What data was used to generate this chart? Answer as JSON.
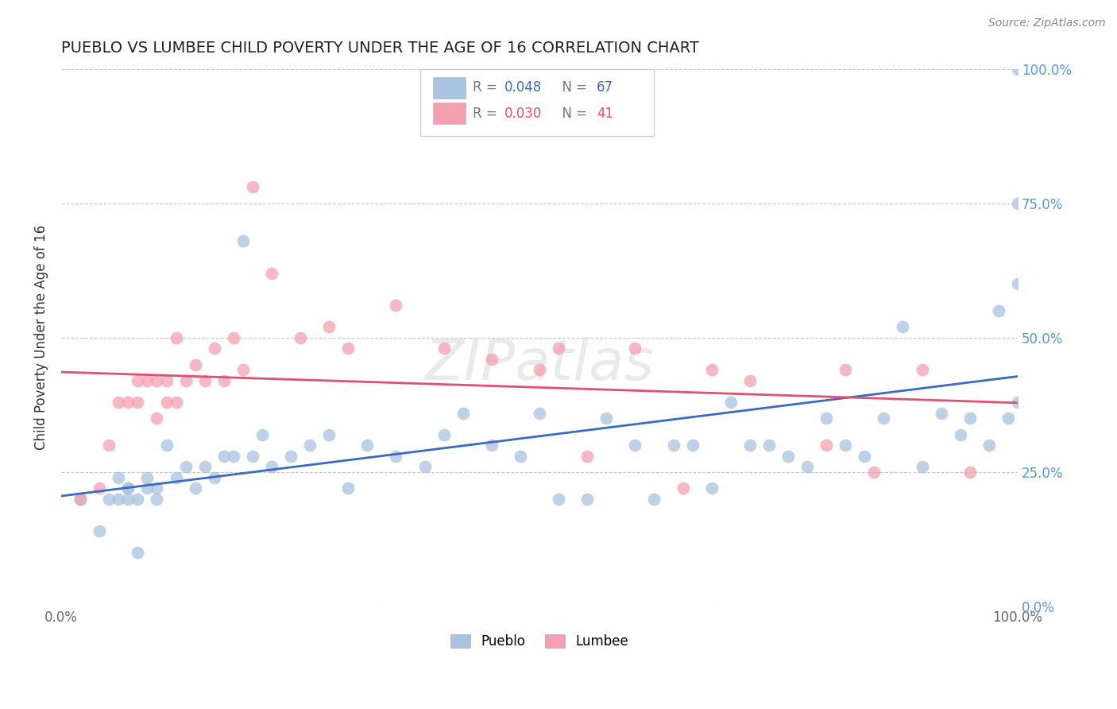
{
  "title": "PUEBLO VS LUMBEE CHILD POVERTY UNDER THE AGE OF 16 CORRELATION CHART",
  "source": "Source: ZipAtlas.com",
  "ylabel": "Child Poverty Under the Age of 16",
  "xlim": [
    0,
    1
  ],
  "ylim": [
    0,
    1
  ],
  "pueblo_color": "#a8c4e0",
  "lumbee_color": "#f4a0b0",
  "pueblo_line_color": "#3a6bbf",
  "lumbee_line_color": "#e05070",
  "pueblo_R": 0.048,
  "pueblo_N": 67,
  "lumbee_R": 0.03,
  "lumbee_N": 41,
  "background_color": "#ffffff",
  "grid_color": "#c8c8c8",
  "pueblo_x": [
    0.02,
    0.04,
    0.05,
    0.06,
    0.06,
    0.07,
    0.07,
    0.07,
    0.08,
    0.08,
    0.09,
    0.09,
    0.1,
    0.1,
    0.11,
    0.12,
    0.13,
    0.14,
    0.15,
    0.16,
    0.17,
    0.18,
    0.19,
    0.2,
    0.21,
    0.22,
    0.24,
    0.26,
    0.28,
    0.3,
    0.32,
    0.35,
    0.38,
    0.4,
    0.42,
    0.45,
    0.48,
    0.5,
    0.52,
    0.55,
    0.57,
    0.6,
    0.62,
    0.64,
    0.66,
    0.68,
    0.7,
    0.72,
    0.74,
    0.76,
    0.78,
    0.8,
    0.82,
    0.84,
    0.86,
    0.88,
    0.9,
    0.92,
    0.94,
    0.95,
    0.97,
    0.98,
    0.99,
    1.0,
    1.0,
    1.0,
    1.0
  ],
  "pueblo_y": [
    0.2,
    0.14,
    0.2,
    0.2,
    0.24,
    0.22,
    0.2,
    0.22,
    0.1,
    0.2,
    0.24,
    0.22,
    0.2,
    0.22,
    0.3,
    0.24,
    0.26,
    0.22,
    0.26,
    0.24,
    0.28,
    0.28,
    0.68,
    0.28,
    0.32,
    0.26,
    0.28,
    0.3,
    0.32,
    0.22,
    0.3,
    0.28,
    0.26,
    0.32,
    0.36,
    0.3,
    0.28,
    0.36,
    0.2,
    0.2,
    0.35,
    0.3,
    0.2,
    0.3,
    0.3,
    0.22,
    0.38,
    0.3,
    0.3,
    0.28,
    0.26,
    0.35,
    0.3,
    0.28,
    0.35,
    0.52,
    0.26,
    0.36,
    0.32,
    0.35,
    0.3,
    0.55,
    0.35,
    1.0,
    0.75,
    0.38,
    0.6
  ],
  "lumbee_x": [
    0.02,
    0.04,
    0.05,
    0.06,
    0.07,
    0.08,
    0.08,
    0.09,
    0.1,
    0.1,
    0.11,
    0.11,
    0.12,
    0.12,
    0.13,
    0.14,
    0.15,
    0.16,
    0.17,
    0.18,
    0.19,
    0.2,
    0.22,
    0.25,
    0.28,
    0.3,
    0.35,
    0.4,
    0.45,
    0.5,
    0.52,
    0.55,
    0.6,
    0.65,
    0.68,
    0.72,
    0.8,
    0.82,
    0.85,
    0.9,
    0.95
  ],
  "lumbee_y": [
    0.2,
    0.22,
    0.3,
    0.38,
    0.38,
    0.38,
    0.42,
    0.42,
    0.35,
    0.42,
    0.38,
    0.42,
    0.38,
    0.5,
    0.42,
    0.45,
    0.42,
    0.48,
    0.42,
    0.5,
    0.44,
    0.78,
    0.62,
    0.5,
    0.52,
    0.48,
    0.56,
    0.48,
    0.46,
    0.44,
    0.48,
    0.28,
    0.48,
    0.22,
    0.44,
    0.42,
    0.3,
    0.44,
    0.25,
    0.44,
    0.25
  ]
}
